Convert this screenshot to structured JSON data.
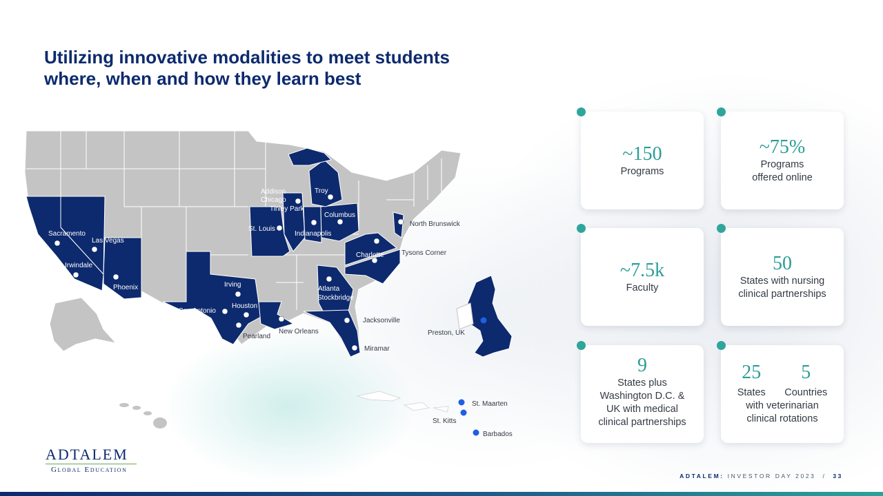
{
  "title": {
    "line1": "Utilizing innovative modalities to meet students",
    "line2": "where, when and how they learn best"
  },
  "map": {
    "us_cities": [
      "Sacramento",
      "Las Vegas",
      "Irwindale",
      "Phoenix",
      "San Antonio",
      "Irving",
      "Houston",
      "Pearland",
      "New Orleans",
      "St. Louis",
      "Addison",
      "Chicago",
      "Tinley Park",
      "Indianapolis",
      "Troy",
      "Columbus",
      "North Brunswick",
      "Tysons Corner",
      "Charlotte",
      "Atlanta",
      "Stockbridge",
      "Jacksonville",
      "Miramar"
    ],
    "uk_city": "Preston, UK",
    "caribbean": [
      "St. Maarten",
      "St. Kitts",
      "Barbados"
    ]
  },
  "stats": [
    {
      "value": "~150",
      "label1": "Programs",
      "label2": ""
    },
    {
      "value": "~75%",
      "label1": "Programs",
      "label2": "offered online"
    },
    {
      "value": "~7.5k",
      "label1": "Faculty",
      "label2": ""
    },
    {
      "value": "50",
      "label1": "States with nursing",
      "label2": "clinical partnerships"
    },
    {
      "value": "9",
      "label1": "States plus",
      "label2": "Washington D.C. &",
      "label3": "UK with medical",
      "label4": "clinical partnerships"
    },
    {
      "value_a": "25",
      "value_b": "5",
      "label_a": "States",
      "label_b": "Countries",
      "label1": "with veterinarian",
      "label2": "clinical rotations"
    }
  ],
  "logo": {
    "name": "ADTALEM",
    "sub": "Global Education"
  },
  "footer": {
    "brand": "ADTALEM:",
    "event": "INVESTOR DAY 2023",
    "sep": "/",
    "page": "33"
  },
  "colors": {
    "navy": "#0d2a6e",
    "teal": "#2a9d96",
    "gray_state": "#c4c4c4"
  }
}
